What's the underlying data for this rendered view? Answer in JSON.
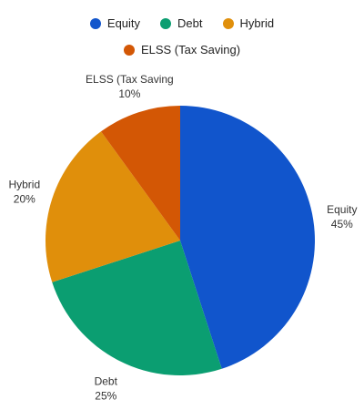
{
  "chart_data": {
    "type": "pie",
    "title": "",
    "legend_position": "top",
    "slices": [
      {
        "name": "Equity",
        "label": "Equity",
        "percent_label": "45%",
        "value": 45,
        "color": "#1155cc"
      },
      {
        "name": "Debt",
        "label": "Debt",
        "percent_label": "25%",
        "value": 25,
        "color": "#0b9e71"
      },
      {
        "name": "Hybrid",
        "label": "Hybrid",
        "percent_label": "20%",
        "value": 20,
        "color": "#e08f0b"
      },
      {
        "name": "ELSS (Tax Saving)",
        "label": "ELSS (Tax Saving",
        "percent_label": "10%",
        "value": 10,
        "color": "#d35705"
      }
    ]
  }
}
